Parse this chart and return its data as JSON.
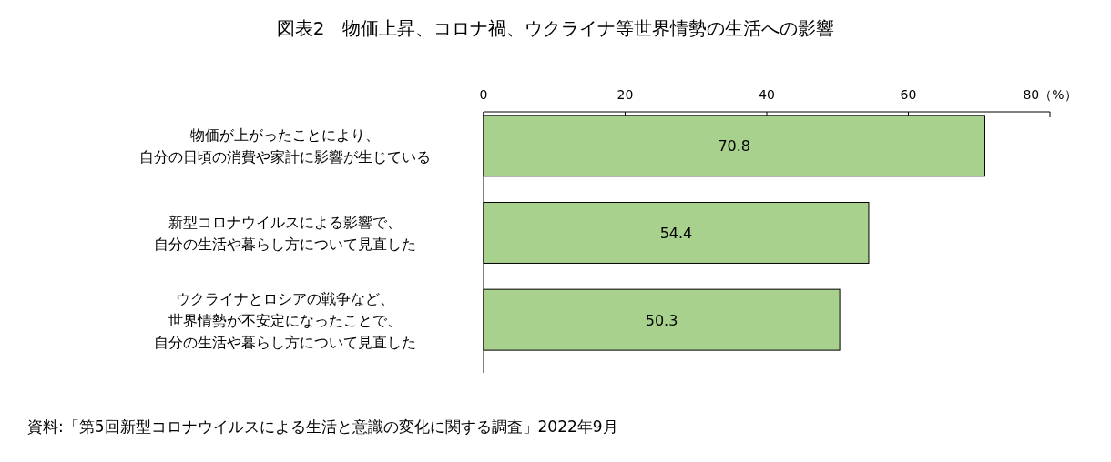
{
  "chart_data": {
    "type": "bar",
    "orientation": "horizontal",
    "title": "図表2　物価上昇、コロナ禍、ウクライナ等世界情勢の生活への影響",
    "categories": [
      "物価が上がったことにより、自分の日頃の消費や家計に影響が生じている",
      "新型コロナウイルスによる影響で、自分の生活や暮らし方について見直した",
      "ウクライナとロシアの戦争など、世界情勢が不安定になったことで、自分の生活や暮らし方について見直した"
    ],
    "values": [
      70.8,
      54.4,
      50.3
    ],
    "color": "#a9d18e",
    "data_labels": true,
    "xlim": [
      0,
      80
    ],
    "xticks": [
      0,
      20,
      40,
      60,
      {
        "value": 80,
        "label": "80（%）"
      }
    ],
    "annotations": [
      "資料:「第5回新型コロナウイルスによる生活と意識の変化に関する調査」2022年9月"
    ]
  }
}
